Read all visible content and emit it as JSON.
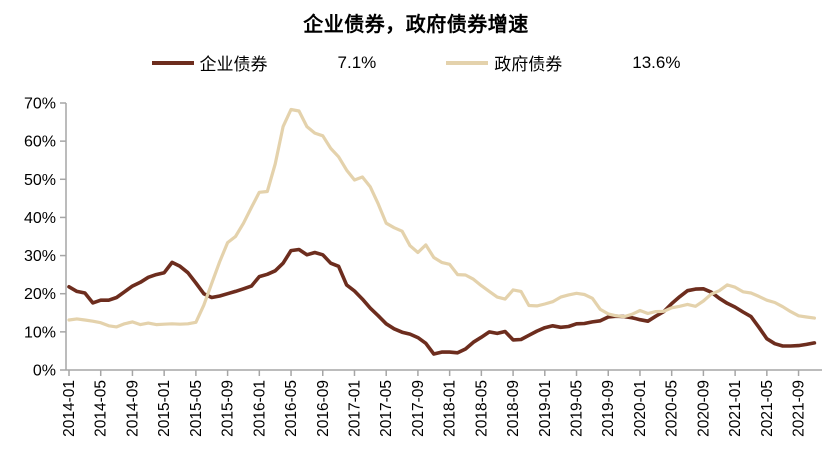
{
  "title": "企业债券，政府债券增速",
  "legend": [
    {
      "label": "企业债券",
      "value": "7.1%",
      "color": "#6D2D1E"
    },
    {
      "label": "政府债券",
      "value": "13.6%",
      "color": "#E4D2AC"
    }
  ],
  "colors": {
    "corporate_line": "#6D2D1E",
    "government_line": "#E4D2AC",
    "axis": "#A6A6A6",
    "text": "#000000",
    "background": "#FFFFFF"
  },
  "chart_data": {
    "type": "line",
    "title": "企业债券，政府债券增速",
    "xlabel": "",
    "ylabel": "",
    "ylim": [
      0,
      70
    ],
    "grid": false,
    "legend_position": "top",
    "y_tick_labels": [
      "0%",
      "10%",
      "20%",
      "30%",
      "40%",
      "50%",
      "60%",
      "70%"
    ],
    "x_tick_labels": [
      "2014-01",
      "2014-05",
      "2014-09",
      "2015-01",
      "2015-05",
      "2015-09",
      "2016-01",
      "2016-05",
      "2016-09",
      "2017-01",
      "2017-05",
      "2017-09",
      "2018-01",
      "2018-05",
      "2018-09",
      "2019-01",
      "2019-05",
      "2019-09",
      "2020-01",
      "2020-05",
      "2020-09",
      "2021-01",
      "2021-05",
      "2021-09"
    ],
    "x_tick_step_months": 4,
    "x_start_month": "2014-01",
    "x_end_month": "2021-11",
    "series": [
      {
        "name": "企业债券",
        "latest_value_label": "7.1%",
        "color": "#6D2D1E",
        "values": [
          21.8,
          20.6,
          20.2,
          17.6,
          18.3,
          18.3,
          19.0,
          20.5,
          22.0,
          23.0,
          24.3,
          25.0,
          25.5,
          28.2,
          27.2,
          25.5,
          22.8,
          20.0,
          19.0,
          19.4,
          20.0,
          20.6,
          21.3,
          22.0,
          24.5,
          25.1,
          26.0,
          28.0,
          31.3,
          31.6,
          30.2,
          30.8,
          30.2,
          28.0,
          27.2,
          22.3,
          20.7,
          18.6,
          16.2,
          14.2,
          12.1,
          10.8,
          9.9,
          9.4,
          8.5,
          7.0,
          4.2,
          4.7,
          4.7,
          4.5,
          5.5,
          7.3,
          8.6,
          10.0,
          9.6,
          10.1,
          7.9,
          8.0,
          9.1,
          10.2,
          11.1,
          11.6,
          11.2,
          11.4,
          12.1,
          12.2,
          12.6,
          12.9,
          13.9,
          14.1,
          14.0,
          13.7,
          13.2,
          12.8,
          14.1,
          15.3,
          17.4,
          19.2,
          20.8,
          21.2,
          21.3,
          20.4,
          18.8,
          17.5,
          16.5,
          15.2,
          14.0,
          11.2,
          8.2,
          6.9,
          6.3,
          6.3,
          6.4,
          6.7,
          7.1
        ]
      },
      {
        "name": "政府债券",
        "latest_value_label": "13.6%",
        "color": "#E4D2AC",
        "values": [
          13.1,
          13.4,
          13.1,
          12.8,
          12.4,
          11.6,
          11.3,
          12.1,
          12.6,
          11.9,
          12.3,
          11.9,
          12.0,
          12.1,
          12.0,
          12.1,
          12.5,
          17.0,
          22.7,
          28.4,
          33.4,
          35.0,
          38.5,
          42.6,
          46.6,
          46.8,
          54.0,
          63.8,
          68.3,
          67.9,
          63.8,
          62.1,
          61.4,
          58.1,
          55.9,
          52.4,
          49.8,
          50.6,
          48.0,
          43.5,
          38.5,
          37.3,
          36.4,
          32.6,
          30.8,
          32.8,
          29.5,
          28.2,
          27.7,
          25.0,
          24.9,
          23.8,
          22.1,
          20.6,
          19.1,
          18.6,
          21.0,
          20.6,
          16.9,
          16.8,
          17.3,
          17.9,
          19.1,
          19.7,
          20.1,
          19.8,
          18.8,
          15.9,
          14.7,
          14.2,
          14.0,
          14.6,
          15.6,
          14.8,
          15.3,
          15.4,
          16.3,
          16.7,
          17.2,
          16.7,
          18.1,
          19.9,
          20.8,
          22.3,
          21.7,
          20.5,
          20.2,
          19.3,
          18.3,
          17.7,
          16.6,
          15.3,
          14.2,
          13.9,
          13.6
        ]
      }
    ]
  }
}
